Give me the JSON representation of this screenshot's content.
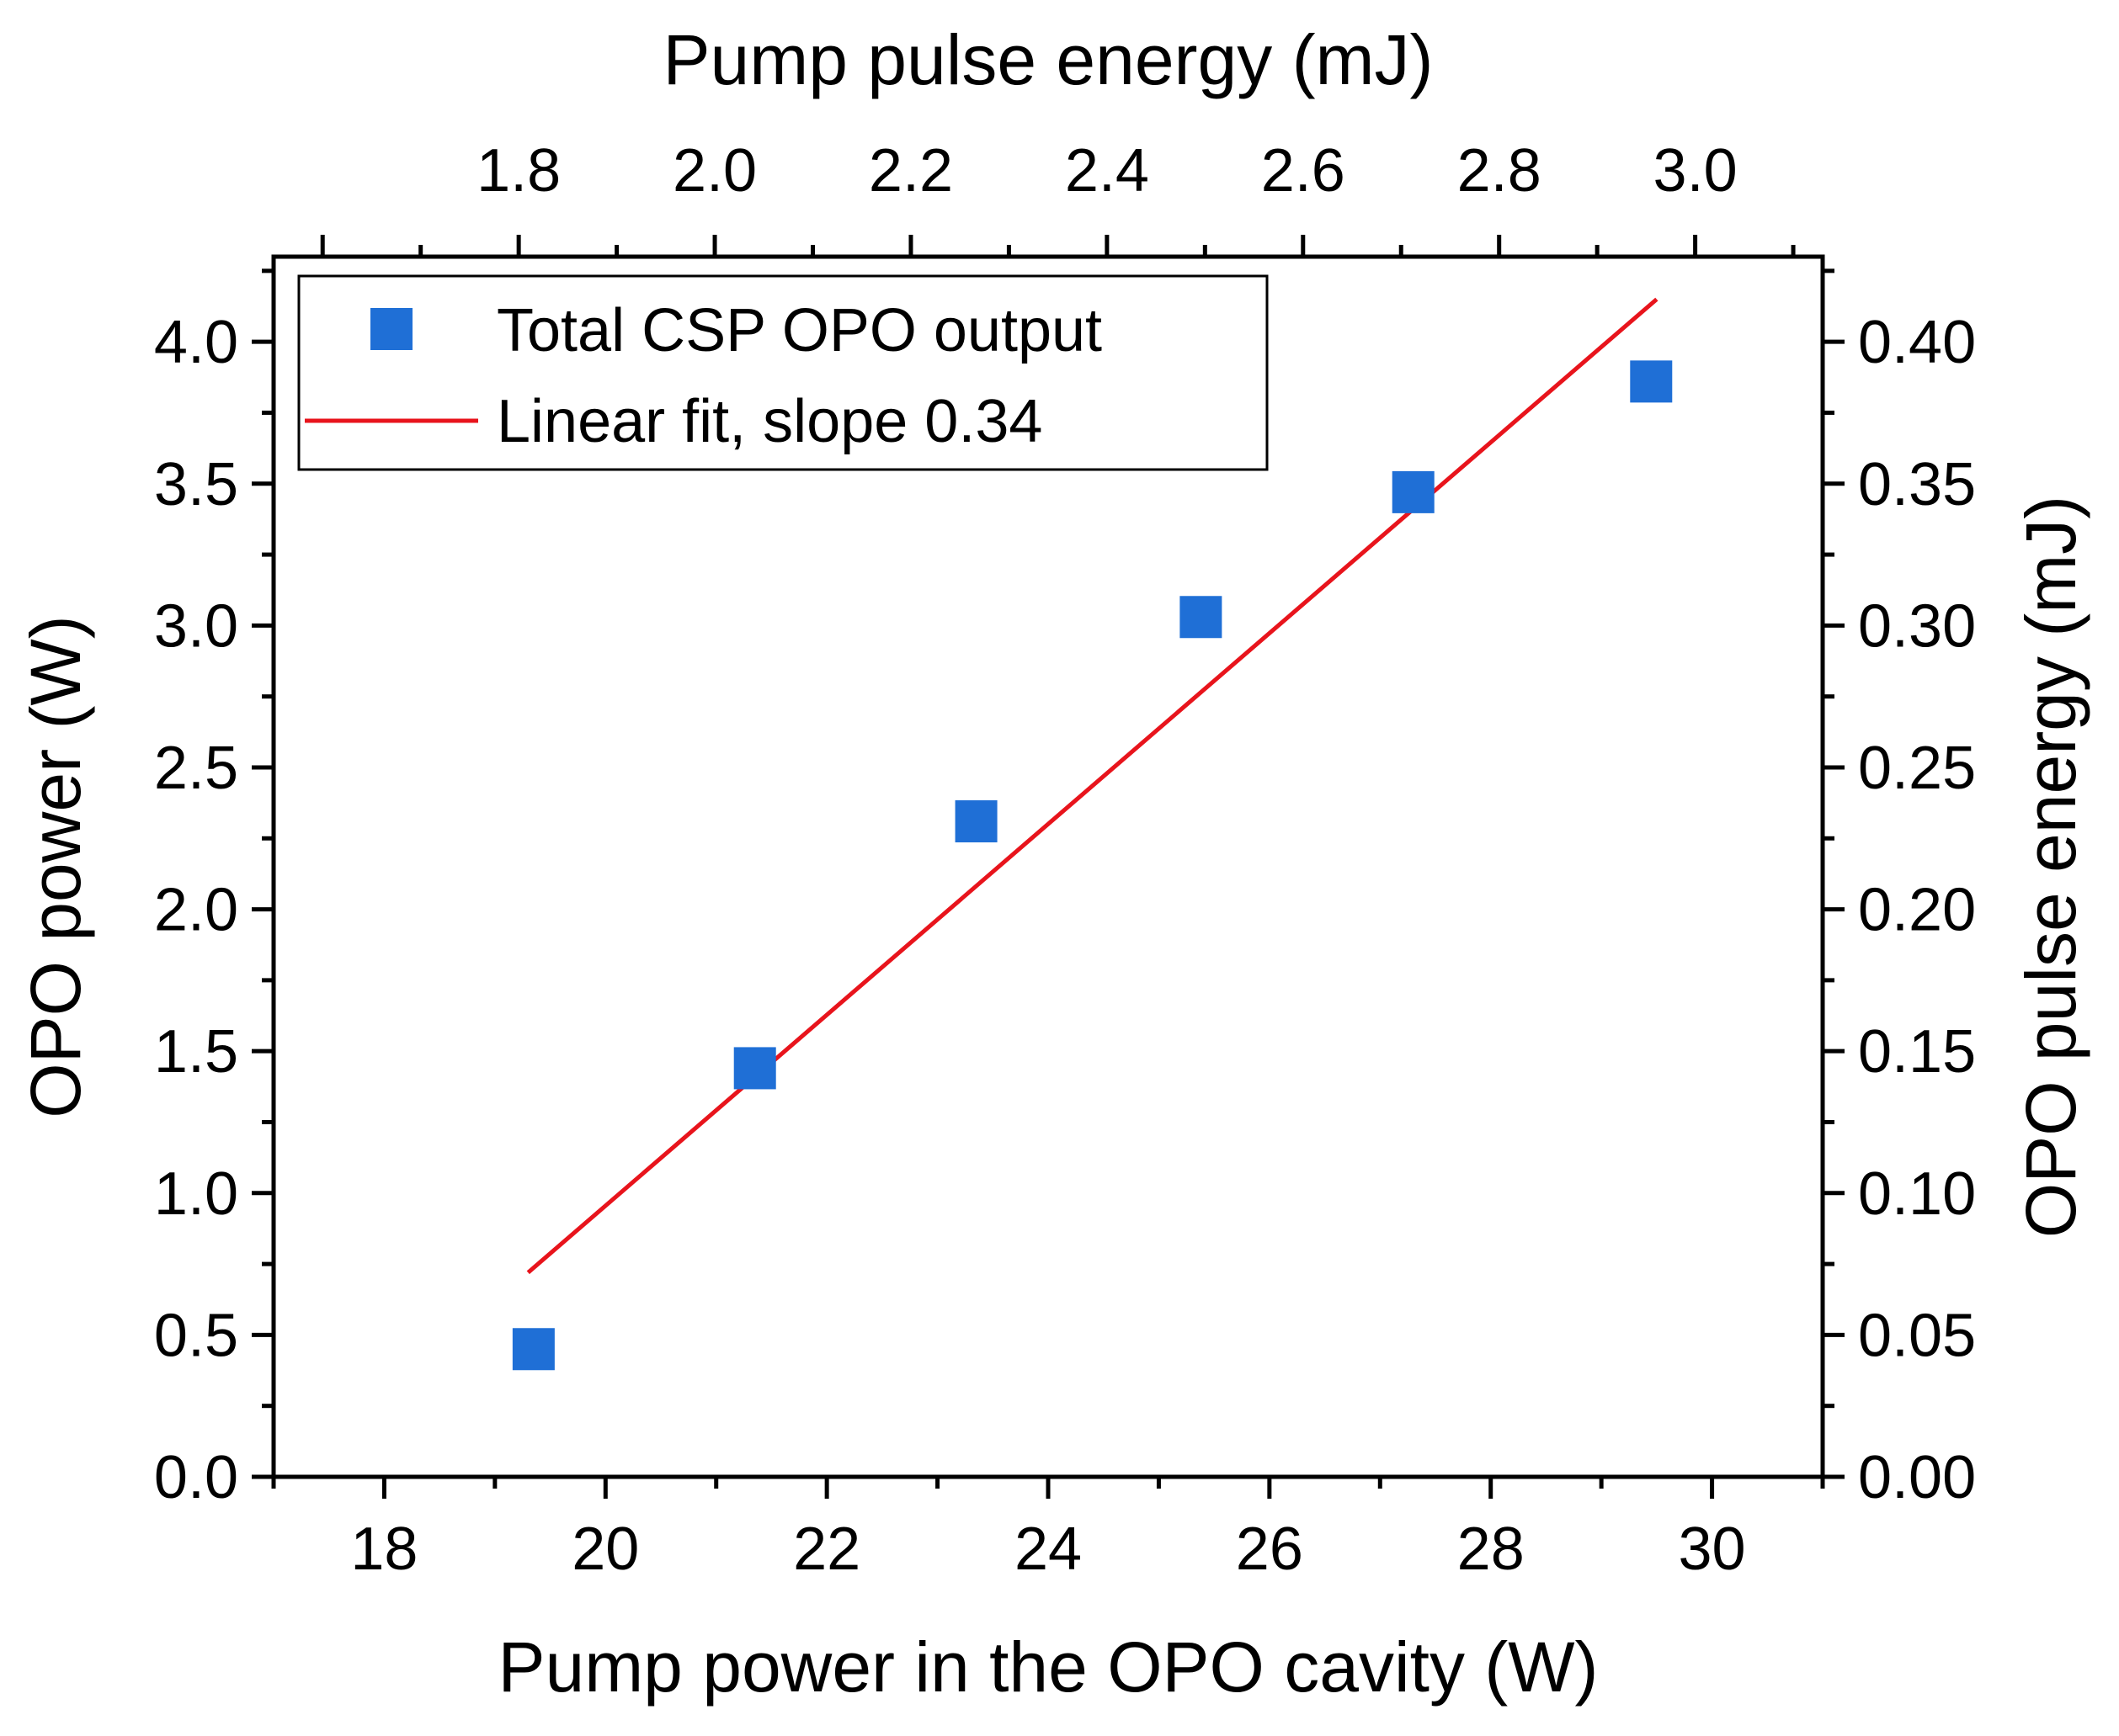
{
  "chart_data": {
    "type": "scatter",
    "xlabel": "Pump power in the OPO cavity (W)",
    "ylabel": "OPO power (W)",
    "x2label": "Pump pulse energy (mJ)",
    "y2label": "OPO pulse energy (mJ)",
    "xlim": [
      17,
      31
    ],
    "ylim": [
      0,
      4.3
    ],
    "x2lim": [
      1.55,
      3.13
    ],
    "y2lim": [
      0,
      0.43
    ],
    "x_ticks": [
      "18",
      "20",
      "22",
      "24",
      "26",
      "28",
      "30"
    ],
    "y_ticks": [
      "0.0",
      "0.5",
      "1.0",
      "1.5",
      "2.0",
      "2.5",
      "3.0",
      "3.5",
      "4.0"
    ],
    "x2_ticks": [
      "1.8",
      "2.0",
      "2.2",
      "2.4",
      "2.6",
      "2.8",
      "3.0"
    ],
    "y2_ticks": [
      "0.00",
      "0.05",
      "0.10",
      "0.15",
      "0.20",
      "0.25",
      "0.30",
      "0.35",
      "0.40"
    ],
    "series": [
      {
        "name": "Total CSP OPO output",
        "kind": "scatter",
        "marker": "square",
        "color": "#1f6fd6",
        "points": [
          {
            "x": 19.35,
            "y": 0.45
          },
          {
            "x": 21.35,
            "y": 1.44
          },
          {
            "x": 23.35,
            "y": 2.31
          },
          {
            "x": 25.38,
            "y": 3.03
          },
          {
            "x": 27.3,
            "y": 3.47
          },
          {
            "x": 29.45,
            "y": 3.86
          }
        ]
      },
      {
        "name": "Linear fit, slope 0.34",
        "kind": "line",
        "color": "#e8141c",
        "points": [
          {
            "x": 19.3,
            "y": 0.72
          },
          {
            "x": 29.5,
            "y": 4.15
          }
        ]
      }
    ],
    "legend": {
      "position": "top-left",
      "entries": [
        "Total CSP OPO output",
        "Linear fit, slope 0.34"
      ]
    }
  }
}
